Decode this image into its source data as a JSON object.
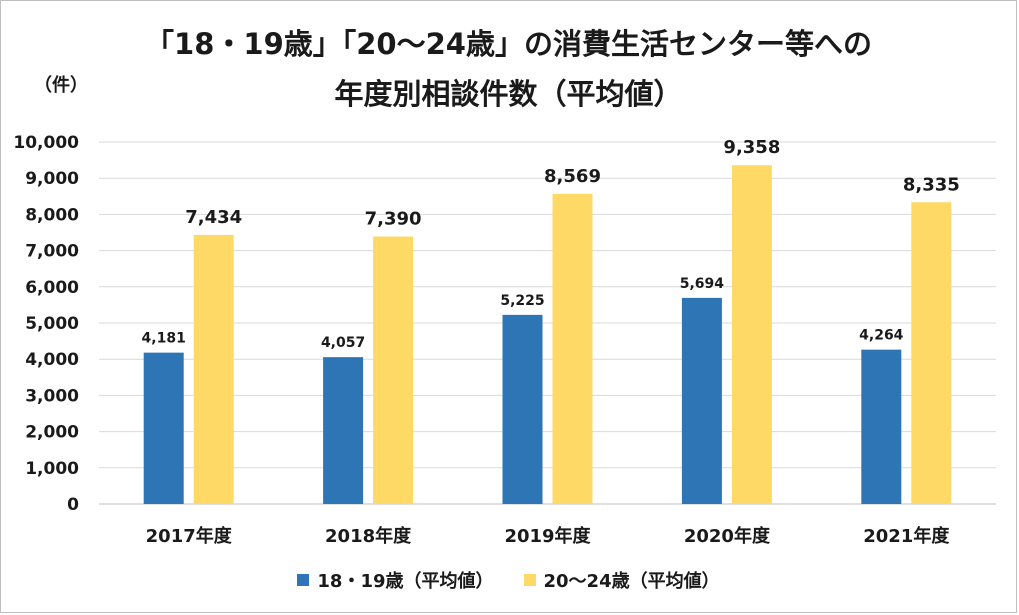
{
  "chart_data": {
    "type": "bar",
    "title_line1": "「18・19歳」「20～24歳」の消費生活センター等への",
    "title_line2": "年度別相談件数（平均値）",
    "unit_label": "（件）",
    "categories": [
      "2017年度",
      "2018年度",
      "2019年度",
      "2020年度",
      "2021年度"
    ],
    "series": [
      {
        "name": "18・19歳（平均値）",
        "values": [
          4181,
          4057,
          5225,
          5694,
          4264
        ],
        "color": "#2e75b6"
      },
      {
        "name": "20～24歳（平均値）",
        "values": [
          7434,
          7390,
          8569,
          9358,
          8335
        ],
        "color": "#ffd966"
      }
    ],
    "ylim": [
      0,
      10000
    ],
    "yticks": [
      "0",
      "1,000",
      "2,000",
      "3,000",
      "4,000",
      "5,000",
      "6,000",
      "7,000",
      "8,000",
      "9,000",
      "10,000"
    ],
    "data_labels": [
      [
        "4,181",
        "4,057",
        "5,225",
        "5,694",
        "4,264"
      ],
      [
        "7,434",
        "7,390",
        "8,569",
        "9,358",
        "8,335"
      ]
    ],
    "grid": true,
    "legend_position": "bottom"
  }
}
